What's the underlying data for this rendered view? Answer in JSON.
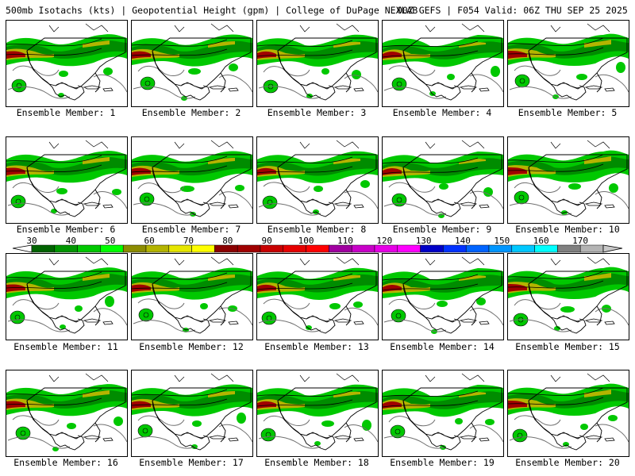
{
  "header": {
    "title": "500mb Isotachs (kts) | Geopotential Height (gpm) | College of DuPage NEXLAB",
    "run": "00Z GEFS | F054 Valid: 06Z THU SEP 25 2025"
  },
  "member_prefix": "Ensemble Member:",
  "members": [
    {
      "label": "Ensemble Member: 1"
    },
    {
      "label": "Ensemble Member: 2"
    },
    {
      "label": "Ensemble Member: 3"
    },
    {
      "label": "Ensemble Member: 4"
    },
    {
      "label": "Ensemble Member: 5"
    },
    {
      "label": "Ensemble Member: 6"
    },
    {
      "label": "Ensemble Member: 7"
    },
    {
      "label": "Ensemble Member: 8"
    },
    {
      "label": "Ensemble Member: 9"
    },
    {
      "label": "Ensemble Member: 10"
    },
    {
      "label": "Ensemble Member: 11"
    },
    {
      "label": "Ensemble Member: 12"
    },
    {
      "label": "Ensemble Member: 13"
    },
    {
      "label": "Ensemble Member: 14"
    },
    {
      "label": "Ensemble Member: 15"
    },
    {
      "label": "Ensemble Member: 16"
    },
    {
      "label": "Ensemble Member: 17"
    },
    {
      "label": "Ensemble Member: 18"
    },
    {
      "label": "Ensemble Member: 19"
    },
    {
      "label": "Ensemble Member: 20"
    }
  ],
  "colorbar": {
    "labels": [
      "30",
      "40",
      "50",
      "60",
      "70",
      "80",
      "90",
      "100",
      "110",
      "120",
      "130",
      "140",
      "150",
      "160",
      "170"
    ],
    "colors": [
      "#006400",
      "#009600",
      "#00c800",
      "#00ff00",
      "#8c8c00",
      "#b4b400",
      "#e6e600",
      "#ffff00",
      "#8b0000",
      "#a00000",
      "#c80000",
      "#e60000",
      "#ff0000",
      "#a000a0",
      "#c800c8",
      "#e600e6",
      "#ff00ff",
      "#0000c8",
      "#0032ff",
      "#0064ff",
      "#0096ff",
      "#00c8ff",
      "#00ffff",
      "#808080",
      "#b4b4b4"
    ]
  },
  "map_colors": {
    "jet_light": "#00c800",
    "jet_dark": "#008c00",
    "jet_core": "#b4b400",
    "jet_max": "#a00000",
    "height_contour": "#707070",
    "coastline": "#000000"
  }
}
